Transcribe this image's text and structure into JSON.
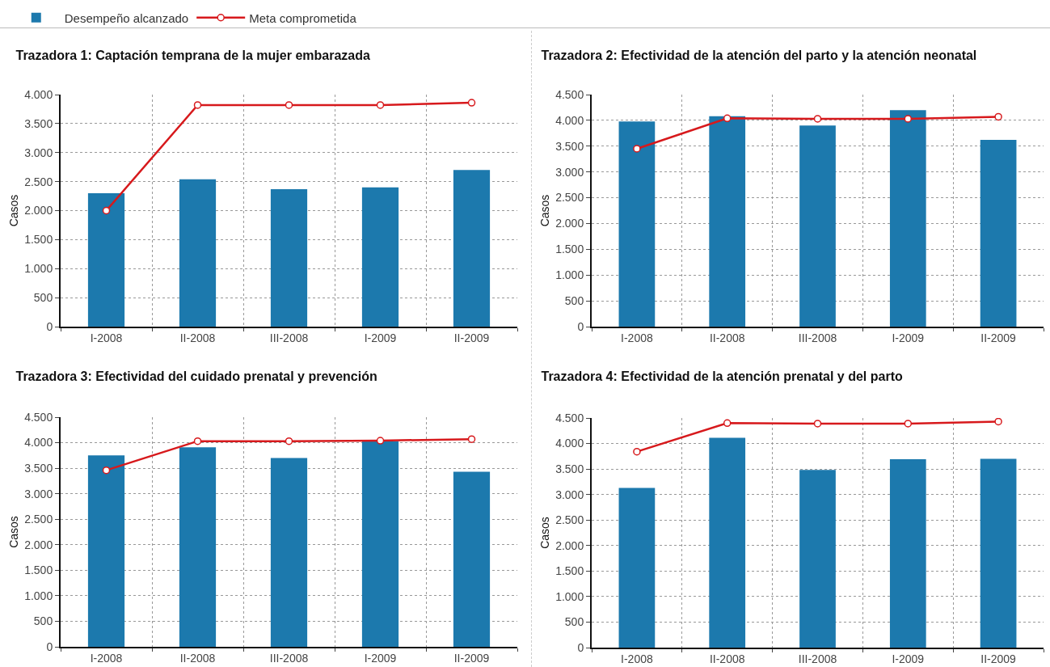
{
  "chart_data": [
    {
      "type": "bar",
      "title": "Trazadora 1: Captación temprana de la mujer embarazada",
      "ylabel": "Casos",
      "categories": [
        "I-2008",
        "II-2008",
        "III-2008",
        "I-2009",
        "II-2009"
      ],
      "series": [
        {
          "name": "Desempeño alcanzado",
          "type": "bar",
          "color": "#1c79ad",
          "values": [
            2300,
            2540,
            2370,
            2400,
            2700
          ]
        },
        {
          "name": "Meta comprometida",
          "type": "line",
          "color": "#d7191c",
          "values": [
            2000,
            3820,
            3820,
            3820,
            3860
          ]
        }
      ],
      "ylim": [
        0,
        4000
      ],
      "yticks": [
        {
          "value": 0,
          "label": "0"
        },
        {
          "value": 500,
          "label": "500"
        },
        {
          "value": 1000,
          "label": "1.000"
        },
        {
          "value": 1500,
          "label": "1.500"
        },
        {
          "value": 2000,
          "label": "2.000"
        },
        {
          "value": 2500,
          "label": "2.500"
        },
        {
          "value": 3000,
          "label": "3.000"
        },
        {
          "value": 3500,
          "label": "3.500"
        },
        {
          "value": 4000,
          "label": "4.000"
        }
      ],
      "grid": true,
      "legend": "top",
      "marker": "circle"
    },
    {
      "type": "bar",
      "title": "Trazadora 2: Efectividad de la atención del parto y la atención neonatal",
      "ylabel": "Casos",
      "categories": [
        "I-2008",
        "II-2008",
        "III-2008",
        "I-2009",
        "II-2009"
      ],
      "series": [
        {
          "type": "bar",
          "color": "#1c79ad",
          "values": [
            3980,
            4080,
            3900,
            4200,
            3620
          ]
        },
        {
          "type": "line",
          "color": "#d7191c",
          "values": [
            3450,
            4040,
            4030,
            4030,
            4070
          ]
        }
      ],
      "ylim": [
        0,
        4500
      ],
      "yticks": [
        {
          "value": 0,
          "label": "0"
        },
        {
          "value": 500,
          "label": "500"
        },
        {
          "value": 1000,
          "label": "1.000"
        },
        {
          "value": 1500,
          "label": "1.500"
        },
        {
          "value": 2000,
          "label": "2.000"
        },
        {
          "value": 2500,
          "label": "2.500"
        },
        {
          "value": 3000,
          "label": "3.000"
        },
        {
          "value": 3500,
          "label": "3.500"
        },
        {
          "value": 4000,
          "label": "4.000"
        },
        {
          "value": 4500,
          "label": "4.500"
        }
      ],
      "grid": true,
      "marker": "circle"
    },
    {
      "type": "bar",
      "title": "Trazadora 3: Efectividad del cuidado prenatal y prevención",
      "ylabel": "Casos",
      "categories": [
        "I-2008",
        "II-2008",
        "III-2008",
        "I-2009",
        "II-2009"
      ],
      "series": [
        {
          "type": "bar",
          "color": "#1c79ad",
          "values": [
            3750,
            3910,
            3700,
            4030,
            3430
          ]
        },
        {
          "type": "line",
          "color": "#d7191c",
          "values": [
            3460,
            4030,
            4030,
            4040,
            4070
          ]
        }
      ],
      "ylim": [
        0,
        4500
      ],
      "yticks": [
        {
          "value": 0,
          "label": "0"
        },
        {
          "value": 500,
          "label": "500"
        },
        {
          "value": 1000,
          "label": "1.000"
        },
        {
          "value": 1500,
          "label": "1.500"
        },
        {
          "value": 2000,
          "label": "2.000"
        },
        {
          "value": 2500,
          "label": "2.500"
        },
        {
          "value": 3000,
          "label": "3.000"
        },
        {
          "value": 3500,
          "label": "3.500"
        },
        {
          "value": 4000,
          "label": "4.000"
        },
        {
          "value": 4500,
          "label": "4.500"
        }
      ],
      "grid": true,
      "marker": "circle"
    },
    {
      "type": "bar",
      "title": "Trazadora 4: Efectividad de la atención prenatal y del parto",
      "ylabel": "Casos",
      "categories": [
        "I-2008",
        "II-2008",
        "III-2008",
        "I-2009",
        "II-2009"
      ],
      "series": [
        {
          "type": "bar",
          "color": "#1c79ad",
          "values": [
            3130,
            4110,
            3480,
            3690,
            3700
          ]
        },
        {
          "type": "line",
          "color": "#d7191c",
          "values": [
            3840,
            4400,
            4390,
            4390,
            4430
          ]
        }
      ],
      "ylim": [
        0,
        4500
      ],
      "yticks": [
        {
          "value": 0,
          "label": "0"
        },
        {
          "value": 500,
          "label": "500"
        },
        {
          "value": 1000,
          "label": "1.000"
        },
        {
          "value": 1500,
          "label": "1.500"
        },
        {
          "value": 2000,
          "label": "2.000"
        },
        {
          "value": 2500,
          "label": "2.500"
        },
        {
          "value": 3000,
          "label": "3.000"
        },
        {
          "value": 3500,
          "label": "3.500"
        },
        {
          "value": 4000,
          "label": "4.000"
        },
        {
          "value": 4500,
          "label": "4.500"
        }
      ],
      "grid": true,
      "marker": "circle"
    }
  ]
}
